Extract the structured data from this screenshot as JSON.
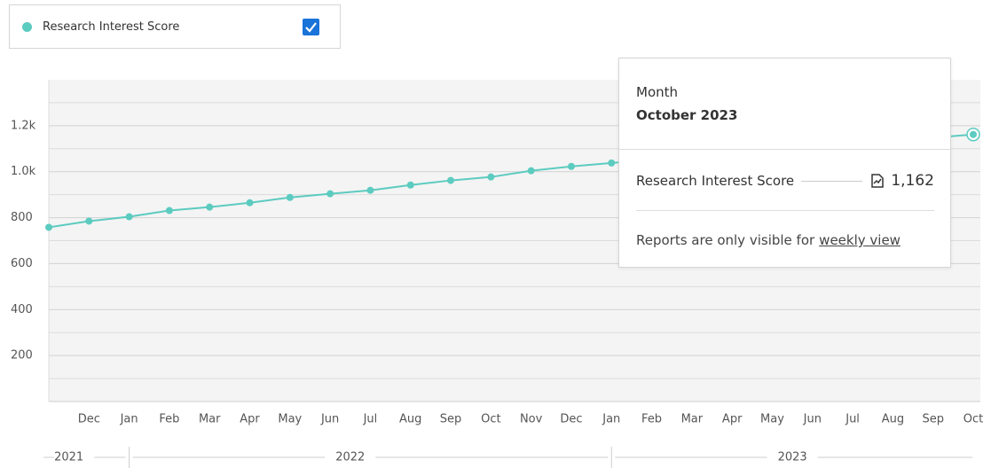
{
  "chart_data": {
    "type": "line",
    "categories": [
      null,
      "Dec",
      "Jan",
      "Feb",
      "Mar",
      "Apr",
      "May",
      "Jun",
      "Jul",
      "Aug",
      "Sep",
      "Oct",
      "Nov",
      "Dec",
      "Jan",
      "Feb",
      "Mar",
      "Apr",
      "May",
      "Jun",
      "Jul",
      "Aug",
      "Sep",
      "Oct"
    ],
    "years": [
      "2021",
      "2022",
      "2023"
    ],
    "series": [
      {
        "name": "Research Interest Score",
        "color": "#5ccbc0",
        "values": [
          758,
          785,
          804,
          831,
          846,
          865,
          888,
          904,
          919,
          942,
          962,
          977,
          1004,
          1023,
          1038,
          1052,
          1066,
          1080,
          1093,
          1107,
          1121,
          1135,
          1148,
          1162
        ]
      }
    ],
    "ylim": [
      0,
      1400
    ],
    "yticks": [
      200,
      400,
      600,
      800,
      {
        "value": 1000,
        "label": "1.0k"
      },
      {
        "value": 1200,
        "label": "1.2k"
      }
    ],
    "minor_yticks": [
      100,
      300,
      500,
      700,
      900,
      1100,
      1300
    ],
    "grid": true,
    "legend": "top-left",
    "tooltip": {
      "label": "Month",
      "period": "October 2023",
      "value_label": "1,162",
      "note": "Reports are only visible for",
      "link": "weekly view"
    }
  }
}
